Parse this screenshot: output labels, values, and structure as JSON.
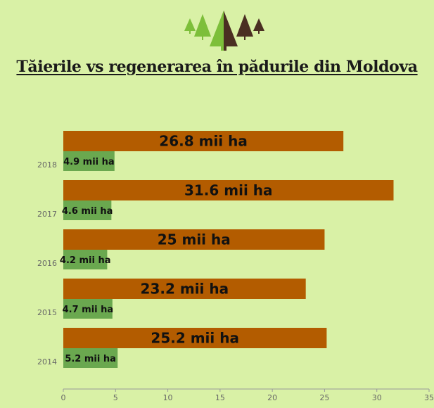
{
  "title": "Tăierile vs regenerarea în pădurile din Moldova",
  "logo": {
    "icon": "forest-trees-icon"
  },
  "colors": {
    "background": "#d9f1a6",
    "cutting": "#b35c00",
    "regeneration": "#6aa84f",
    "axis": "#999999"
  },
  "chart_data": {
    "type": "bar",
    "orientation": "horizontal",
    "categories": [
      "2018",
      "2017",
      "2016",
      "2015",
      "2014"
    ],
    "series": [
      {
        "values": [
          26.8,
          31.6,
          25,
          23.2,
          25.2
        ],
        "labels": [
          "26.8 mii ha",
          "31.6 mii ha",
          "25 mii ha",
          "23.2 mii ha",
          "25.2 mii ha"
        ]
      },
      {
        "values": [
          4.9,
          4.6,
          4.2,
          4.7,
          5.2
        ],
        "labels": [
          "4.9 mii ha",
          "4.6 mii ha",
          "4.2 mii ha",
          "4.7 mii ha",
          "5.2 mii ha"
        ]
      }
    ],
    "xlim": [
      0,
      35
    ],
    "xticks": [
      0,
      5,
      10,
      15,
      20,
      25,
      30,
      35
    ],
    "grid": false,
    "legend": "none"
  }
}
